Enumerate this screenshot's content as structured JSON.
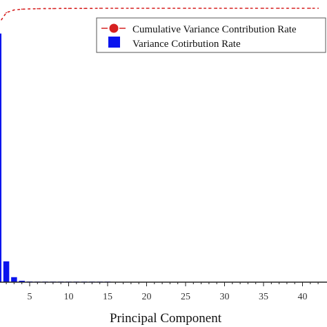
{
  "chart_data": {
    "type": "bar",
    "xlabel": "Principal Component",
    "ylabel": "",
    "x_ticks": [
      5,
      10,
      15,
      20,
      25,
      30,
      35,
      40
    ],
    "xlim": [
      0.5,
      42.5
    ],
    "ylim": [
      0,
      90
    ],
    "legend_position": "top-right",
    "grid": false,
    "series": [
      {
        "name": "Cumulative Variance Contribution Rate",
        "kind": "line",
        "style": "dotted-red-with-circle-markers",
        "color": "#d62020",
        "x": [
          1,
          2,
          3,
          4,
          5,
          6,
          7,
          8,
          9,
          10,
          11,
          12,
          13,
          14,
          15,
          16,
          17,
          18,
          19,
          20,
          21,
          22,
          23,
          24,
          25,
          26,
          27,
          28,
          29,
          30,
          31,
          32,
          33,
          34,
          35,
          36,
          37,
          38,
          39,
          40,
          41,
          42
        ],
        "values": [
          89.6,
          97.1,
          98.9,
          99.4,
          99.6,
          99.7,
          99.8,
          99.8,
          99.9,
          99.9,
          99.9,
          99.9,
          99.9,
          100,
          100,
          100,
          100,
          100,
          100,
          100,
          100,
          100,
          100,
          100,
          100,
          100,
          100,
          100,
          100,
          100,
          100,
          100,
          100,
          100,
          100,
          100,
          100,
          100,
          100,
          100,
          100,
          100
        ]
      },
      {
        "name": "Variance Cotirbution Rate",
        "kind": "bar",
        "color": "#0a14ee",
        "x": [
          1,
          2,
          3,
          4,
          5,
          6,
          7,
          8,
          9,
          10,
          11,
          12,
          13,
          14,
          15,
          16,
          17,
          18,
          19,
          20,
          21,
          22,
          23,
          24,
          25,
          26,
          27,
          28,
          29,
          30,
          31,
          32,
          33,
          34,
          35,
          36,
          37,
          38,
          39,
          40,
          41,
          42
        ],
        "values": [
          89.6,
          7.5,
          1.8,
          0.5,
          0.25,
          0.15,
          0.08,
          0.05,
          0.04,
          0.03,
          0.02,
          0.02,
          0.01,
          0.01,
          0.01,
          0,
          0,
          0,
          0,
          0,
          0,
          0,
          0,
          0,
          0,
          0,
          0,
          0,
          0,
          0,
          0,
          0,
          0,
          0,
          0,
          0,
          0,
          0,
          0,
          0,
          0,
          0
        ]
      }
    ]
  }
}
